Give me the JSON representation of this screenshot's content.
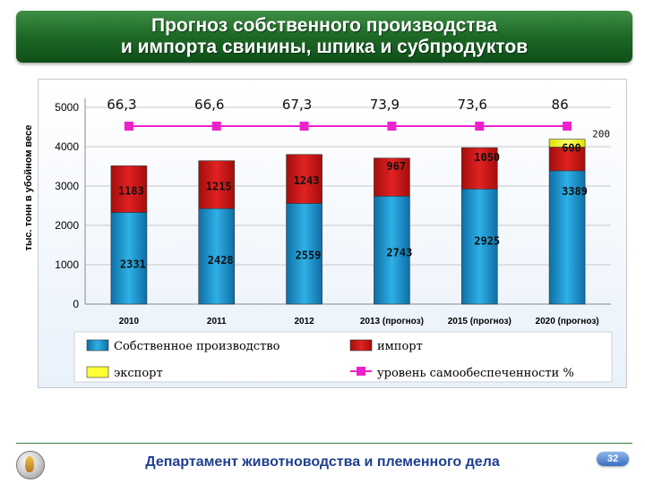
{
  "title": {
    "line1": "Прогноз собственного производства",
    "line2": "и импорта свинины, шпика и субпродуктов"
  },
  "footer": {
    "department": "Департамент животноводства и племенного дела",
    "page_number": "32"
  },
  "chart_data": {
    "type": "bar",
    "stacked": true,
    "ylabel": "тыс. тонн в убойном весе",
    "ylim": [
      0,
      5000
    ],
    "yticks": [
      0,
      1000,
      2000,
      3000,
      4000,
      5000
    ],
    "grid": true,
    "legend_position": "bottom",
    "categories": [
      "2010",
      "2011",
      "2012",
      "2013 (прогноз)",
      "2015 (прогноз)",
      "2020 (прогноз)"
    ],
    "series": [
      {
        "name": "Собственное производство",
        "color": "#1b8fc4",
        "values": [
          2331,
          2428,
          2559,
          2743,
          2925,
          3389
        ],
        "labels": [
          "2331",
          "2428",
          "2559",
          "2743",
          "2925",
          "3389"
        ]
      },
      {
        "name": "импорт",
        "color": "#d11a1a",
        "values": [
          1183,
          1215,
          1243,
          967,
          1050,
          600
        ],
        "labels": [
          "1183",
          "1215",
          "1243",
          "967",
          "1050",
          "600"
        ]
      },
      {
        "name": "экспорт",
        "color": "#ffff33",
        "values": [
          0,
          0,
          0,
          0,
          0,
          200
        ],
        "labels": [
          "",
          "",
          "",
          "",
          "",
          "200"
        ]
      }
    ],
    "line_series": {
      "name": "уровень самообеспеченности %",
      "color": "#ee22cc",
      "values": [
        66.3,
        66.6,
        67.3,
        73.9,
        73.6,
        86
      ],
      "labels": [
        "66,3",
        "66,6",
        "67,3",
        "73,9",
        "73,6",
        "86"
      ]
    }
  }
}
